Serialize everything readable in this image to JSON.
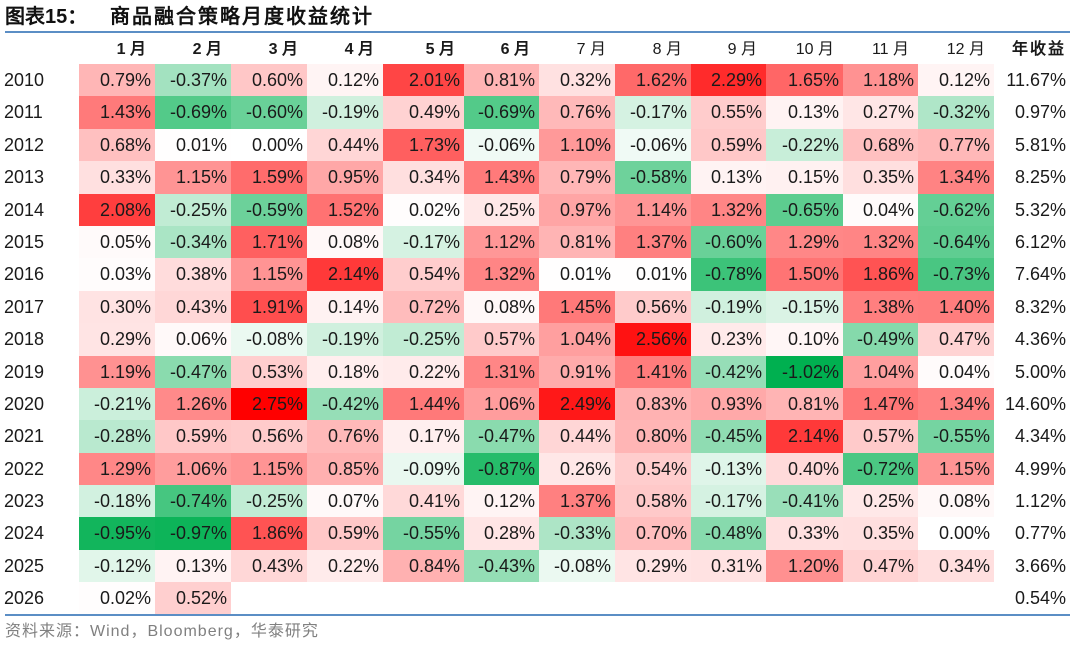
{
  "title": {
    "label": "图表15：",
    "text": "商品融合策略月度收益统计"
  },
  "table": {
    "year_header": "",
    "month_headers": [
      "1 月",
      "2 月",
      "3 月",
      "4 月",
      "5 月",
      "6 月",
      "7 月",
      "8 月",
      "9 月",
      "10 月",
      "11 月",
      "12 月"
    ],
    "annual_header": "年收益",
    "rows": [
      {
        "year": "2010",
        "months": [
          "0.79%",
          "-0.37%",
          "0.60%",
          "0.12%",
          "2.01%",
          "0.81%",
          "0.32%",
          "1.62%",
          "2.29%",
          "1.65%",
          "1.18%",
          "0.12%"
        ],
        "annual": "11.67%"
      },
      {
        "year": "2011",
        "months": [
          "1.43%",
          "-0.69%",
          "-0.60%",
          "-0.19%",
          "0.49%",
          "-0.69%",
          "0.76%",
          "-0.17%",
          "0.55%",
          "0.13%",
          "0.27%",
          "-0.32%"
        ],
        "annual": "0.97%"
      },
      {
        "year": "2012",
        "months": [
          "0.68%",
          "0.01%",
          "0.00%",
          "0.44%",
          "1.73%",
          "-0.06%",
          "1.10%",
          "-0.06%",
          "0.59%",
          "-0.22%",
          "0.68%",
          "0.77%"
        ],
        "annual": "5.81%"
      },
      {
        "year": "2013",
        "months": [
          "0.33%",
          "1.15%",
          "1.59%",
          "0.95%",
          "0.34%",
          "1.43%",
          "0.79%",
          "-0.58%",
          "0.13%",
          "0.15%",
          "0.35%",
          "1.34%"
        ],
        "annual": "8.25%"
      },
      {
        "year": "2014",
        "months": [
          "2.08%",
          "-0.25%",
          "-0.59%",
          "1.52%",
          "0.02%",
          "0.25%",
          "0.97%",
          "1.14%",
          "1.32%",
          "-0.65%",
          "0.04%",
          "-0.62%"
        ],
        "annual": "5.32%"
      },
      {
        "year": "2015",
        "months": [
          "0.05%",
          "-0.34%",
          "1.71%",
          "0.08%",
          "-0.17%",
          "1.12%",
          "0.81%",
          "1.37%",
          "-0.60%",
          "1.29%",
          "1.32%",
          "-0.64%"
        ],
        "annual": "6.12%"
      },
      {
        "year": "2016",
        "months": [
          "0.03%",
          "0.38%",
          "1.15%",
          "2.14%",
          "0.54%",
          "1.32%",
          "0.01%",
          "0.01%",
          "-0.78%",
          "1.50%",
          "1.86%",
          "-0.73%"
        ],
        "annual": "7.64%"
      },
      {
        "year": "2017",
        "months": [
          "0.30%",
          "0.43%",
          "1.91%",
          "0.14%",
          "0.72%",
          "0.08%",
          "1.45%",
          "0.56%",
          "-0.19%",
          "-0.15%",
          "1.38%",
          "1.40%"
        ],
        "annual": "8.32%"
      },
      {
        "year": "2018",
        "months": [
          "0.29%",
          "0.06%",
          "-0.08%",
          "-0.19%",
          "-0.25%",
          "0.57%",
          "1.04%",
          "2.56%",
          "0.23%",
          "0.10%",
          "-0.49%",
          "0.47%"
        ],
        "annual": "4.36%"
      },
      {
        "year": "2019",
        "months": [
          "1.19%",
          "-0.47%",
          "0.53%",
          "0.18%",
          "0.22%",
          "1.31%",
          "0.91%",
          "1.41%",
          "-0.42%",
          "-1.02%",
          "1.04%",
          "0.04%"
        ],
        "annual": "5.00%"
      },
      {
        "year": "2020",
        "months": [
          "-0.21%",
          "1.26%",
          "2.75%",
          "-0.42%",
          "1.44%",
          "1.06%",
          "2.49%",
          "0.83%",
          "0.93%",
          "0.81%",
          "1.47%",
          "1.34%"
        ],
        "annual": "14.60%"
      },
      {
        "year": "2021",
        "months": [
          "-0.28%",
          "0.59%",
          "0.56%",
          "0.76%",
          "0.17%",
          "-0.47%",
          "0.44%",
          "0.80%",
          "-0.45%",
          "2.14%",
          "0.57%",
          "-0.55%"
        ],
        "annual": "4.34%"
      },
      {
        "year": "2022",
        "months": [
          "1.29%",
          "1.06%",
          "1.15%",
          "0.85%",
          "-0.09%",
          "-0.87%",
          "0.26%",
          "0.54%",
          "-0.13%",
          "0.40%",
          "-0.72%",
          "1.15%"
        ],
        "annual": "4.99%"
      },
      {
        "year": "2023",
        "months": [
          "-0.18%",
          "-0.74%",
          "-0.25%",
          "0.07%",
          "0.41%",
          "0.12%",
          "1.37%",
          "0.58%",
          "-0.17%",
          "-0.41%",
          "0.25%",
          "0.08%"
        ],
        "annual": "1.12%"
      },
      {
        "year": "2024",
        "months": [
          "-0.95%",
          "-0.97%",
          "1.86%",
          "0.59%",
          "-0.55%",
          "0.28%",
          "-0.33%",
          "0.70%",
          "-0.48%",
          "0.33%",
          "0.35%",
          "0.00%"
        ],
        "annual": "0.77%"
      },
      {
        "year": "2025",
        "months": [
          "-0.12%",
          "0.13%",
          "0.43%",
          "0.22%",
          "0.84%",
          "-0.43%",
          "-0.08%",
          "0.29%",
          "0.31%",
          "1.20%",
          "0.47%",
          "0.34%"
        ],
        "annual": "3.66%"
      },
      {
        "year": "2026",
        "months": [
          "0.02%",
          "0.52%",
          "",
          "",
          "",
          "",
          "",
          "",
          "",
          "",
          "",
          ""
        ],
        "annual": "0.54%"
      }
    ]
  },
  "color_scale": {
    "min": -1.02,
    "max": 2.75,
    "negative_color": "#00B050",
    "midpoint_color": "#FFFFFF",
    "positive_color": "#FF0000"
  },
  "colors": {
    "rule": "#5B8EC5",
    "source_text": "#808080"
  },
  "source": "资料来源：Wind，Bloomberg，华泰研究",
  "chart_data": {
    "type": "heatmap",
    "title": "商品融合策略月度收益统计",
    "xlabel": "",
    "ylabel": "",
    "unit": "%",
    "x": [
      "1月",
      "2月",
      "3月",
      "4月",
      "5月",
      "6月",
      "7月",
      "8月",
      "9月",
      "10月",
      "11月",
      "12月"
    ],
    "y": [
      "2010",
      "2011",
      "2012",
      "2013",
      "2014",
      "2015",
      "2016",
      "2017",
      "2018",
      "2019",
      "2020",
      "2021",
      "2022",
      "2023",
      "2024",
      "2025",
      "2026"
    ],
    "values": [
      [
        0.79,
        -0.37,
        0.6,
        0.12,
        2.01,
        0.81,
        0.32,
        1.62,
        2.29,
        1.65,
        1.18,
        0.12
      ],
      [
        1.43,
        -0.69,
        -0.6,
        -0.19,
        0.49,
        -0.69,
        0.76,
        -0.17,
        0.55,
        0.13,
        0.27,
        -0.32
      ],
      [
        0.68,
        0.01,
        0.0,
        0.44,
        1.73,
        -0.06,
        1.1,
        -0.06,
        0.59,
        -0.22,
        0.68,
        0.77
      ],
      [
        0.33,
        1.15,
        1.59,
        0.95,
        0.34,
        1.43,
        0.79,
        -0.58,
        0.13,
        0.15,
        0.35,
        1.34
      ],
      [
        2.08,
        -0.25,
        -0.59,
        1.52,
        0.02,
        0.25,
        0.97,
        1.14,
        1.32,
        -0.65,
        0.04,
        -0.62
      ],
      [
        0.05,
        -0.34,
        1.71,
        0.08,
        -0.17,
        1.12,
        0.81,
        1.37,
        -0.6,
        1.29,
        1.32,
        -0.64
      ],
      [
        0.03,
        0.38,
        1.15,
        2.14,
        0.54,
        1.32,
        0.01,
        0.01,
        -0.78,
        1.5,
        1.86,
        -0.73
      ],
      [
        0.3,
        0.43,
        1.91,
        0.14,
        0.72,
        0.08,
        1.45,
        0.56,
        -0.19,
        -0.15,
        1.38,
        1.4
      ],
      [
        0.29,
        0.06,
        -0.08,
        -0.19,
        -0.25,
        0.57,
        1.04,
        2.56,
        0.23,
        0.1,
        -0.49,
        0.47
      ],
      [
        1.19,
        -0.47,
        0.53,
        0.18,
        0.22,
        1.31,
        0.91,
        1.41,
        -0.42,
        -1.02,
        1.04,
        0.04
      ],
      [
        -0.21,
        1.26,
        2.75,
        -0.42,
        1.44,
        1.06,
        2.49,
        0.83,
        0.93,
        0.81,
        1.47,
        1.34
      ],
      [
        -0.28,
        0.59,
        0.56,
        0.76,
        0.17,
        -0.47,
        0.44,
        0.8,
        -0.45,
        2.14,
        0.57,
        -0.55
      ],
      [
        1.29,
        1.06,
        1.15,
        0.85,
        -0.09,
        -0.87,
        0.26,
        0.54,
        -0.13,
        0.4,
        -0.72,
        1.15
      ],
      [
        -0.18,
        -0.74,
        -0.25,
        0.07,
        0.41,
        0.12,
        1.37,
        0.58,
        -0.17,
        -0.41,
        0.25,
        0.08
      ],
      [
        -0.95,
        -0.97,
        1.86,
        0.59,
        -0.55,
        0.28,
        -0.33,
        0.7,
        -0.48,
        0.33,
        0.35,
        0.0
      ],
      [
        -0.12,
        0.13,
        0.43,
        0.22,
        0.84,
        -0.43,
        -0.08,
        0.29,
        0.31,
        1.2,
        0.47,
        0.34
      ],
      [
        0.02,
        0.52,
        null,
        null,
        null,
        null,
        null,
        null,
        null,
        null,
        null,
        null
      ]
    ],
    "annual_header": "年收益",
    "annual": [
      11.67,
      0.97,
      5.81,
      8.25,
      5.32,
      6.12,
      7.64,
      8.32,
      4.36,
      5.0,
      14.6,
      4.34,
      4.99,
      1.12,
      0.77,
      3.66,
      0.54
    ],
    "color_range": [
      -1.02,
      2.75
    ],
    "legend": "none",
    "grid": false
  }
}
